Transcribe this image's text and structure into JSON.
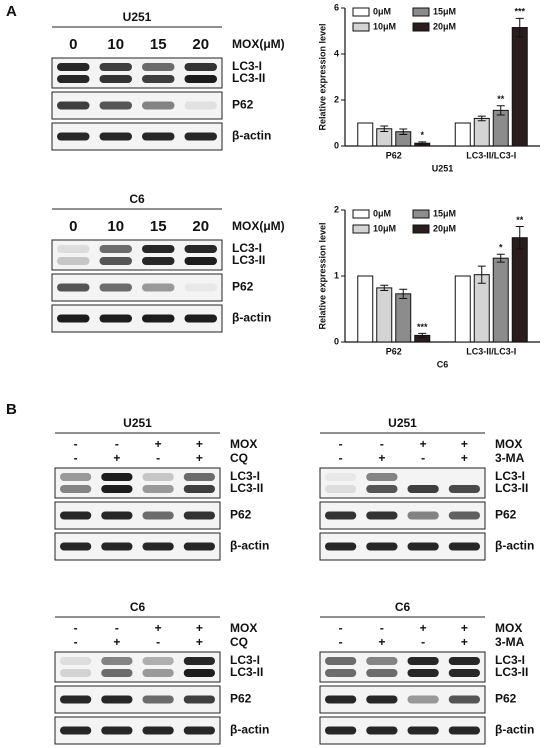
{
  "panel_labels": [
    "A",
    "B"
  ],
  "dose_blots": [
    {
      "title": "U251",
      "doses": [
        "0",
        "10",
        "15",
        "20"
      ],
      "dose_label": "MOX(μM)",
      "rows": [
        [
          "LC3-I",
          "LC3-II"
        ],
        [
          "P62"
        ],
        [
          "β-actin"
        ]
      ]
    },
    {
      "title": "C6",
      "doses": [
        "0",
        "10",
        "15",
        "20"
      ],
      "dose_label": "MOX(μM)",
      "rows": [
        [
          "LC3-I",
          "LC3-II"
        ],
        [
          "P62"
        ],
        [
          "β-actin"
        ]
      ]
    }
  ],
  "treatment_blots": [
    {
      "title": "U251",
      "treatments": [
        {
          "name": "MOX",
          "signs": [
            "-",
            "-",
            "+",
            "+"
          ]
        },
        {
          "name": "CQ",
          "signs": [
            "-",
            "+",
            "-",
            "+"
          ]
        }
      ],
      "rows": [
        [
          "LC3-I",
          "LC3-II"
        ],
        [
          "P62"
        ],
        [
          "β-actin"
        ]
      ]
    },
    {
      "title": "U251",
      "treatments": [
        {
          "name": "MOX",
          "signs": [
            "-",
            "-",
            "+",
            "+"
          ]
        },
        {
          "name": "3-MA",
          "signs": [
            "-",
            "+",
            "-",
            "+"
          ]
        }
      ],
      "rows": [
        [
          "LC3-I",
          "LC3-II"
        ],
        [
          "P62"
        ],
        [
          "β-actin"
        ]
      ]
    },
    {
      "title": "C6",
      "treatments": [
        {
          "name": "MOX",
          "signs": [
            "-",
            "-",
            "+",
            "+"
          ]
        },
        {
          "name": "CQ",
          "signs": [
            "-",
            "+",
            "-",
            "+"
          ]
        }
      ],
      "rows": [
        [
          "LC3-I",
          "LC3-II"
        ],
        [
          "P62"
        ],
        [
          "β-actin"
        ]
      ]
    },
    {
      "title": "C6",
      "treatments": [
        {
          "name": "MOX",
          "signs": [
            "-",
            "-",
            "+",
            "+"
          ]
        },
        {
          "name": "3-MA",
          "signs": [
            "-",
            "+",
            "-",
            "+"
          ]
        }
      ],
      "rows": [
        [
          "LC3-I",
          "LC3-II"
        ],
        [
          "P62"
        ],
        [
          "β-actin"
        ]
      ]
    }
  ],
  "chart_data": [
    {
      "type": "bar",
      "ylabel": "Relative expression level",
      "xlabel": "U251",
      "categories": [
        "P62",
        "LC3-II/LC3-I"
      ],
      "ylim": [
        0,
        6
      ],
      "yticks": [
        0,
        2,
        4,
        6
      ],
      "series": [
        {
          "name": "0μM",
          "color": "#ffffff",
          "values": [
            1,
            1
          ],
          "errors": [
            0,
            0
          ],
          "significance": [
            null,
            null
          ]
        },
        {
          "name": "10μM",
          "color": "#d4d4d4",
          "values": [
            0.75,
            1.2
          ],
          "errors": [
            0.12,
            0.1
          ],
          "significance": [
            null,
            null
          ]
        },
        {
          "name": "15μM",
          "color": "#8c8c8c",
          "values": [
            0.62,
            1.55
          ],
          "errors": [
            0.12,
            0.2
          ],
          "significance": [
            null,
            "**"
          ]
        },
        {
          "name": "20μM",
          "color": "#2b1d1d",
          "values": [
            0.12,
            5.15
          ],
          "errors": [
            0.06,
            0.4
          ],
          "significance": [
            "*",
            "***"
          ]
        }
      ]
    },
    {
      "type": "bar",
      "ylabel": "Relative expression level",
      "xlabel": "C6",
      "categories": [
        "P62",
        "LC3-II/LC3-I"
      ],
      "ylim": [
        0,
        2
      ],
      "yticks": [
        0,
        1,
        2
      ],
      "series": [
        {
          "name": "0μM",
          "color": "#ffffff",
          "values": [
            1,
            1
          ],
          "errors": [
            0,
            0
          ],
          "significance": [
            null,
            null
          ]
        },
        {
          "name": "10μM",
          "color": "#d4d4d4",
          "values": [
            0.82,
            1.02
          ],
          "errors": [
            0.04,
            0.13
          ],
          "significance": [
            null,
            null
          ]
        },
        {
          "name": "15μM",
          "color": "#8c8c8c",
          "values": [
            0.73,
            1.27
          ],
          "errors": [
            0.07,
            0.06
          ],
          "significance": [
            null,
            "*"
          ]
        },
        {
          "name": "20μM",
          "color": "#2b1d1d",
          "values": [
            0.1,
            1.58
          ],
          "errors": [
            0.03,
            0.17
          ],
          "significance": [
            "***",
            "**"
          ]
        }
      ]
    }
  ]
}
